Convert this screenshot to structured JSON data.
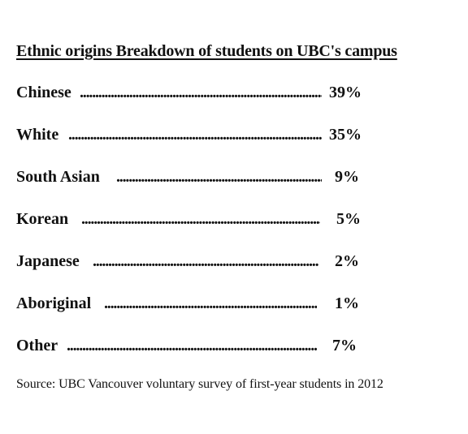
{
  "title": "Ethnic origins Breakdown of students on UBC's campus",
  "items": [
    {
      "label": "Chinese",
      "value": "39%"
    },
    {
      "label": "White",
      "value": "35%"
    },
    {
      "label": "South Asian",
      "value": "9%"
    },
    {
      "label": "Korean",
      "value": "5%"
    },
    {
      "label": "Japanese",
      "value": "2%"
    },
    {
      "label": "Aboriginal",
      "value": "1%"
    },
    {
      "label": "Other",
      "value": "7%"
    }
  ],
  "source": "Source: UBC Vancouver voluntary survey of first-year students in 2012"
}
